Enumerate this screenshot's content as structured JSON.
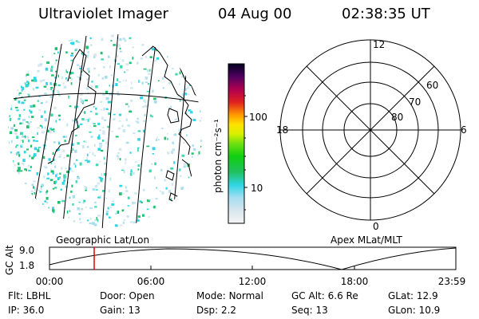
{
  "header": {
    "instrument": "Ultraviolet Imager",
    "date": "04 Aug 00",
    "time": "02:38:35 UT"
  },
  "geo_panel": {
    "caption": "Geographic Lat/Lon"
  },
  "colorbar": {
    "unit_label": "photon cm⁻²s⁻¹",
    "ticks": [
      "100",
      "10"
    ]
  },
  "polar_panel": {
    "caption": "Apex MLat/MLT",
    "mlt_labels": {
      "top": "12",
      "bottom": "0",
      "left": "18",
      "right": "6"
    },
    "lat_labels": [
      "60",
      "70",
      "80"
    ]
  },
  "altitude_plot": {
    "ylabel": "GC Alt",
    "yticks": [
      "9.0",
      "1.8"
    ],
    "xticks": [
      "00:00",
      "06:00",
      "12:00",
      "18:00",
      "23:59"
    ],
    "current_time_hours": 2.64
  },
  "info": {
    "row1": [
      {
        "label": "Flt:",
        "value": "LBHL"
      },
      {
        "label": "Door:",
        "value": "Open"
      },
      {
        "label": "Mode:",
        "value": "Normal"
      },
      {
        "label": "GC Alt:",
        "value": "6.6 Re"
      },
      {
        "label": "GLat:",
        "value": "12.9"
      }
    ],
    "row2": [
      {
        "label": "IP:",
        "value": "36.0"
      },
      {
        "label": "Gain:",
        "value": "13"
      },
      {
        "label": "Dsp:",
        "value": "2.2"
      },
      {
        "label": "Seq:",
        "value": "13"
      },
      {
        "label": "GLon:",
        "value": "10.9"
      }
    ]
  }
}
